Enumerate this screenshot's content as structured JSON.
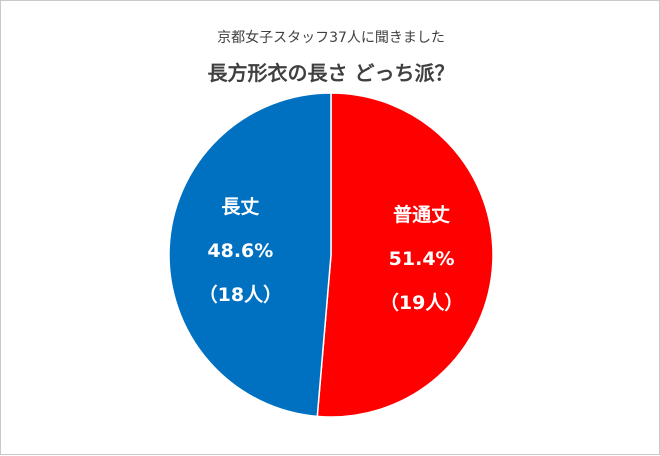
{
  "chart_data": {
    "type": "pie",
    "subtitle": "京都女子スタッフ37人に聞きました",
    "title": "長方形衣の長さ どっち派？",
    "total": 37,
    "slices": [
      {
        "label": "普通丈",
        "value": 19,
        "percent": "51.4%",
        "count": "（19人）",
        "color": "#ff0000"
      },
      {
        "label": "長丈",
        "value": 18,
        "percent": "48.6%",
        "count": "（18人）",
        "color": "#0070c0"
      }
    ]
  }
}
